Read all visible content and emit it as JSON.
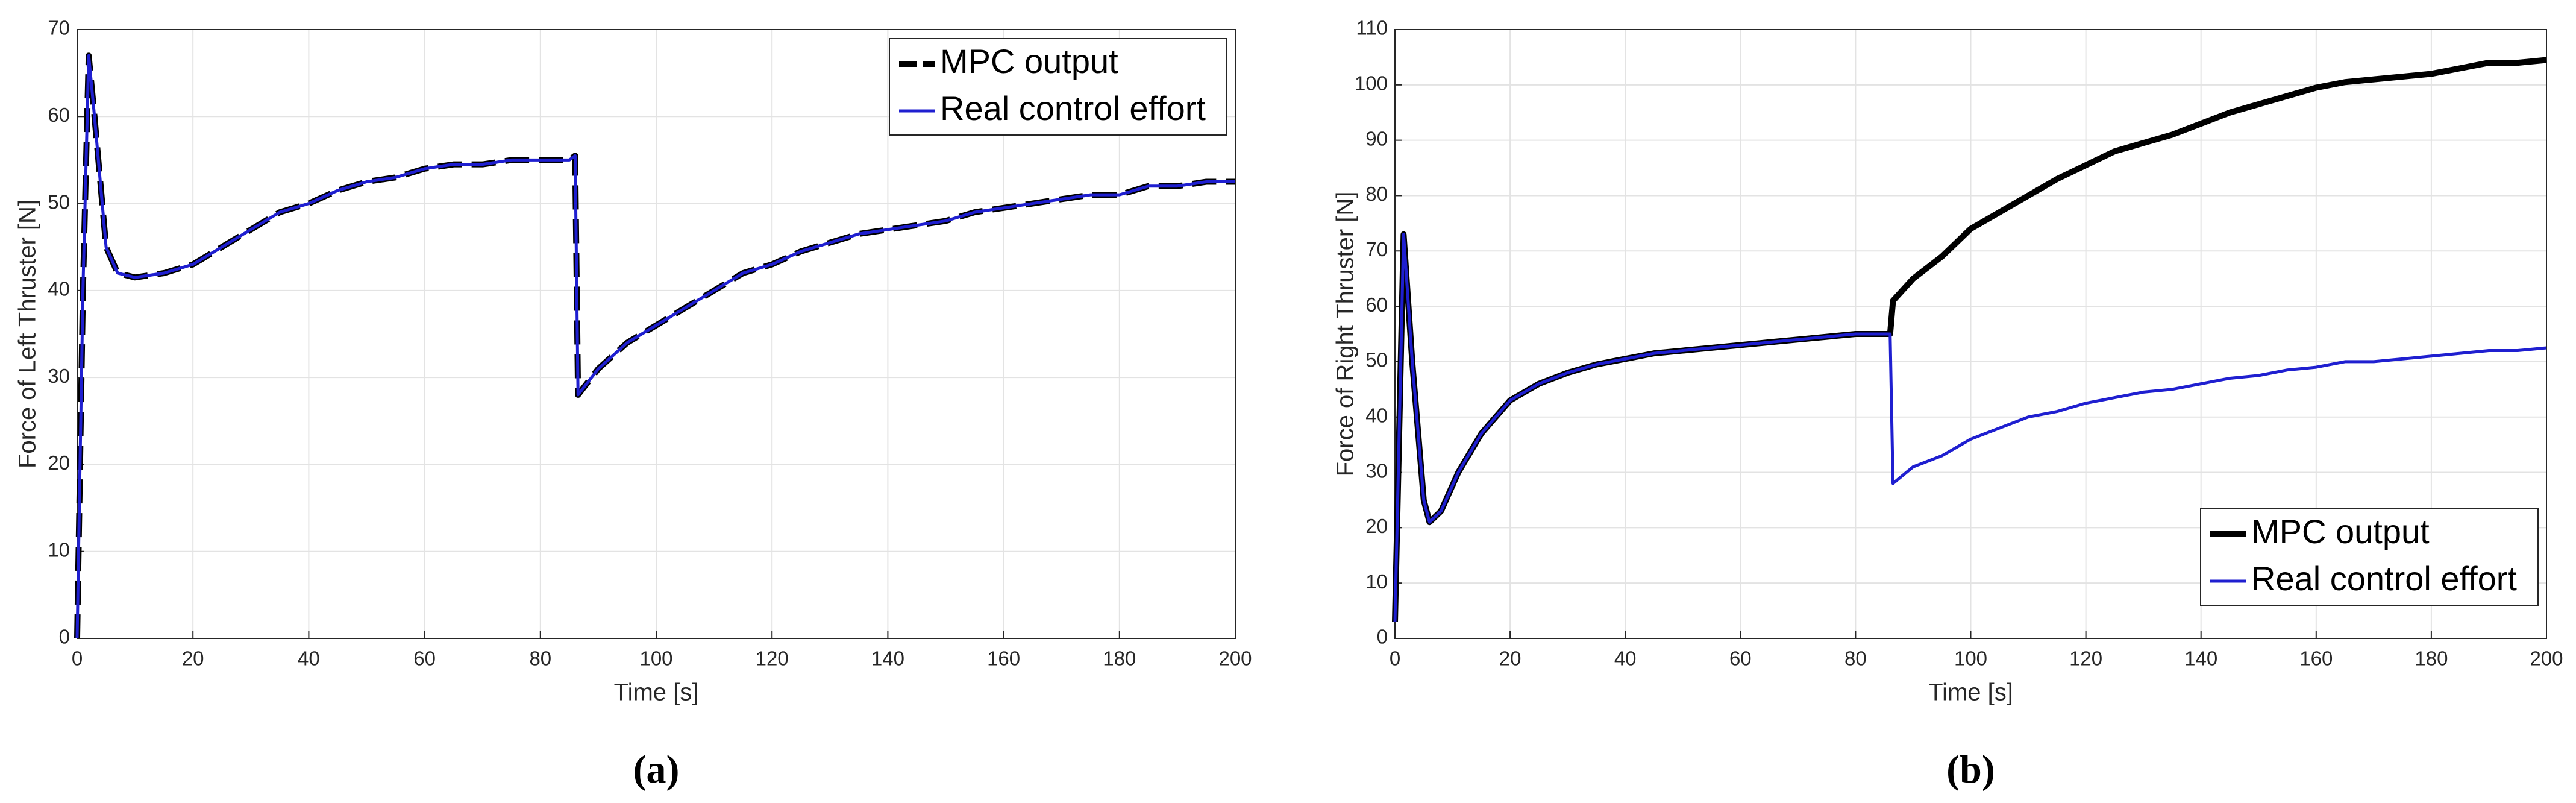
{
  "chart_data": [
    {
      "type": "line",
      "xlabel": "Time [s]",
      "ylabel": "Force of Left Thruster [N]",
      "caption": "(a)",
      "xlim": [
        0,
        200
      ],
      "xticks": [
        0,
        20,
        40,
        60,
        80,
        100,
        120,
        140,
        160,
        180,
        200
      ],
      "ylim": [
        0,
        70
      ],
      "yticks": [
        0,
        10,
        20,
        30,
        40,
        50,
        60,
        70
      ],
      "grid": true,
      "legend": "upper right",
      "x": [
        0,
        1,
        2,
        3,
        5,
        7,
        10,
        15,
        20,
        25,
        30,
        35,
        40,
        45,
        50,
        55,
        60,
        65,
        70,
        75,
        80,
        85,
        86,
        86.5,
        90,
        95,
        100,
        105,
        110,
        115,
        120,
        125,
        130,
        135,
        140,
        145,
        150,
        155,
        160,
        165,
        170,
        175,
        180,
        185,
        190,
        195,
        200
      ],
      "series": [
        {
          "name": "MPC output",
          "color": "#000000",
          "linestyle": "dashed",
          "values": [
            0,
            40,
            67,
            60,
            45,
            42,
            41.5,
            42,
            43,
            45,
            47,
            49,
            50,
            51.5,
            52.5,
            53,
            54,
            54.5,
            54.5,
            55,
            55,
            55,
            55.5,
            28,
            31,
            34,
            36,
            38,
            40,
            42,
            43,
            44.5,
            45.5,
            46.5,
            47,
            47.5,
            48,
            49,
            49.5,
            50,
            50.5,
            51,
            51,
            52,
            52,
            52.5,
            52.5
          ]
        },
        {
          "name": "Real control effort",
          "color": "#1f1fd0",
          "linestyle": "solid",
          "values": [
            0,
            40,
            67,
            60,
            45,
            42,
            41.5,
            42,
            43,
            45,
            47,
            49,
            50,
            51.5,
            52.5,
            53,
            54,
            54.5,
            54.5,
            55,
            55,
            55,
            55.5,
            28,
            31,
            34,
            36,
            38,
            40,
            42,
            43,
            44.5,
            45.5,
            46.5,
            47,
            47.5,
            48,
            49,
            49.5,
            50,
            50.5,
            51,
            51,
            52,
            52,
            52.5,
            52.5
          ]
        }
      ]
    },
    {
      "type": "line",
      "xlabel": "Time [s]",
      "ylabel": "Force of Right Thruster [N]",
      "caption": "(b)",
      "xlim": [
        0,
        200
      ],
      "xticks": [
        0,
        20,
        40,
        60,
        80,
        100,
        120,
        140,
        160,
        180,
        200
      ],
      "ylim": [
        0,
        110
      ],
      "yticks": [
        0,
        10,
        20,
        30,
        40,
        50,
        60,
        70,
        80,
        90,
        100,
        110
      ],
      "grid": true,
      "legend": "lower right",
      "x": [
        0,
        1.5,
        3,
        5,
        6,
        8,
        11,
        15,
        20,
        25,
        30,
        35,
        40,
        45,
        50,
        55,
        60,
        65,
        70,
        75,
        80,
        85,
        86,
        86.5,
        90,
        95,
        100,
        105,
        110,
        115,
        120,
        125,
        130,
        135,
        140,
        145,
        150,
        155,
        160,
        165,
        170,
        175,
        180,
        185,
        190,
        195,
        200
      ],
      "series": [
        {
          "name": "MPC output",
          "color": "#000000",
          "linestyle": "solid",
          "values": [
            3,
            73,
            50,
            25,
            21,
            23,
            30,
            37,
            43,
            46,
            48,
            49.5,
            50.5,
            51.5,
            52,
            52.5,
            53,
            53.5,
            54,
            54.5,
            55,
            55,
            55,
            61,
            65,
            69,
            74,
            77,
            80,
            83,
            85.5,
            88,
            89.5,
            91,
            93,
            95,
            96.5,
            98,
            99.5,
            100.5,
            101,
            101.5,
            102,
            103,
            104,
            104,
            104.5
          ]
        },
        {
          "name": "Real control effort",
          "color": "#1f1fd0",
          "linestyle": "solid",
          "values": [
            3,
            73,
            50,
            25,
            21,
            23,
            30,
            37,
            43,
            46,
            48,
            49.5,
            50.5,
            51.5,
            52,
            52.5,
            53,
            53.5,
            54,
            54.5,
            55,
            55,
            55,
            28,
            31,
            33,
            36,
            38,
            40,
            41,
            42.5,
            43.5,
            44.5,
            45,
            46,
            47,
            47.5,
            48.5,
            49,
            50,
            50,
            50.5,
            51,
            51.5,
            52,
            52,
            52.5
          ]
        }
      ]
    }
  ]
}
